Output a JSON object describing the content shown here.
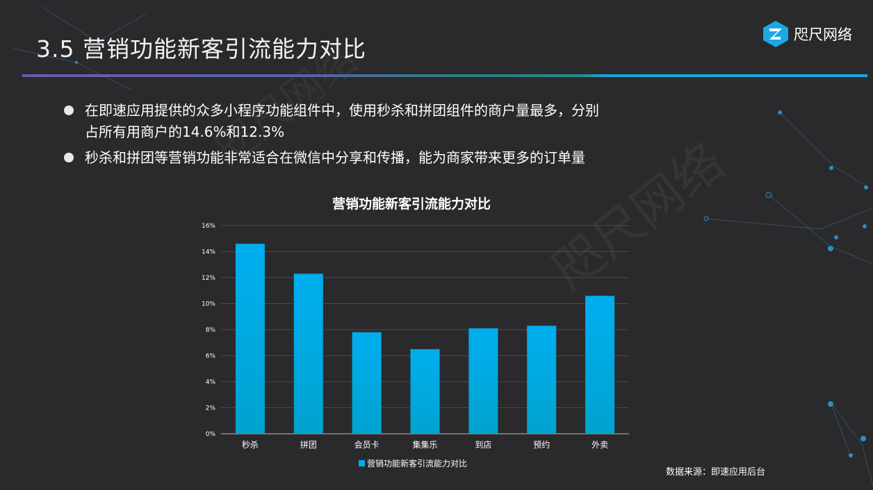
{
  "slide": {
    "title": "3.5 营销功能新客引流能力对比",
    "logo_text": "咫尺网络",
    "watermark_text": "咫尺网络",
    "bullets": [
      "在即速应用提供的众多小程序功能组件中，使用秒杀和拼团组件的商户量最多，分别",
      "占所有用商户的14.6%和12.3%",
      "秒杀和拼团等营销功能非常适合在微信中分享和传播，能为商家带来更多的订单量"
    ],
    "source": "数据来源：即速应用后台"
  },
  "colors": {
    "background": "#2a2a2c",
    "bar_top": "#00aeef",
    "bar_bottom": "#00a3cf",
    "grid": "#4a4a4c",
    "text": "#ffffff"
  },
  "chart_data": {
    "type": "bar",
    "title": "营销功能新客引流能力对比",
    "categories": [
      "秒杀",
      "拼团",
      "会员卡",
      "集集乐",
      "到店",
      "预约",
      "外卖"
    ],
    "series": [
      {
        "name": "营销功能新客引流能力对比",
        "values": [
          14.6,
          12.3,
          7.8,
          6.5,
          8.1,
          8.3,
          10.6
        ]
      }
    ],
    "ylim": [
      0,
      16
    ],
    "yticks": [
      "0%",
      "2%",
      "4%",
      "6%",
      "8%",
      "10%",
      "12%",
      "14%",
      "16%"
    ],
    "grid": true,
    "legend": "bottom"
  }
}
